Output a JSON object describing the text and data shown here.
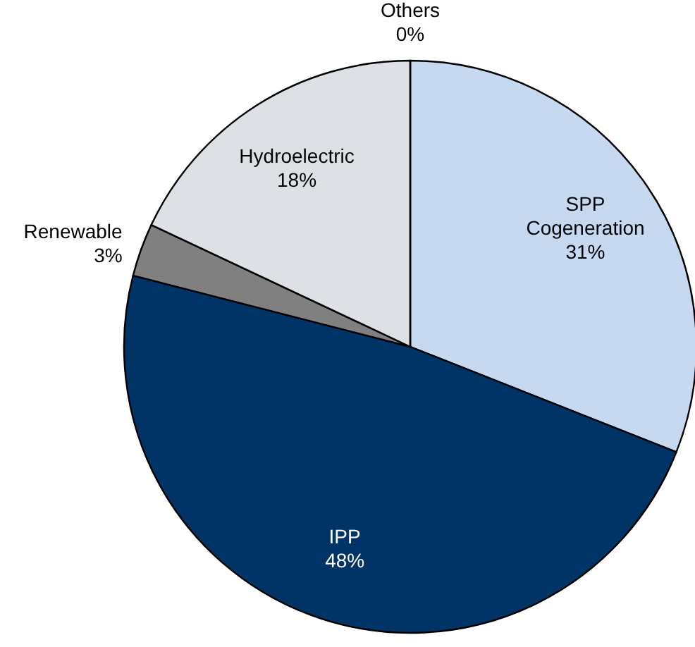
{
  "chart_data": {
    "type": "pie",
    "categories": [
      "SPP Cogeneration",
      "IPP",
      "Renewable",
      "Hydroelectric",
      "Others"
    ],
    "values": [
      31,
      48,
      3,
      18,
      0
    ],
    "value_labels": [
      "31%",
      "48%",
      "3%",
      "18%",
      "0%"
    ],
    "colors": [
      "#c6d9f1",
      "#003366",
      "#808080",
      "#dde1e6",
      "#f2f2f2"
    ]
  }
}
